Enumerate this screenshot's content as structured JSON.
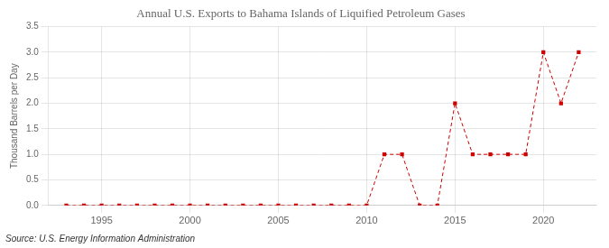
{
  "chart_data": {
    "type": "line",
    "title": "Annual U.S. Exports to Bahama Islands of Liquified Petroleum Gases",
    "ylabel": "Thousand Barrels per Day",
    "source": "Source: U.S. Energy Information Administration",
    "x": [
      1993,
      1994,
      1995,
      1996,
      1997,
      1998,
      1999,
      2000,
      2001,
      2002,
      2003,
      2004,
      2005,
      2006,
      2007,
      2008,
      2009,
      2010,
      2011,
      2012,
      2013,
      2014,
      2015,
      2016,
      2017,
      2018,
      2019,
      2020,
      2021,
      2022
    ],
    "values": [
      0,
      0,
      0,
      0,
      0,
      0,
      0,
      0,
      0,
      0,
      0,
      0,
      0,
      0,
      0,
      0,
      0,
      0,
      1,
      1,
      0,
      0,
      2,
      1,
      1,
      1,
      1,
      3,
      2,
      3
    ],
    "color": "#cc0000",
    "marker": "square",
    "line_style": "dashed",
    "xlim": [
      1992,
      2023
    ],
    "xticks": [
      1995,
      2000,
      2005,
      2010,
      2015,
      2020
    ],
    "ylim": [
      0,
      3.5
    ],
    "yticks": [
      {
        "value": 0,
        "label": "0.0"
      },
      0.5,
      {
        "value": 1,
        "label": "1.0"
      },
      1.5,
      {
        "value": 2,
        "label": "2.0"
      },
      2.5,
      {
        "value": 3,
        "label": "3.0"
      },
      3.5
    ],
    "grid": true
  }
}
